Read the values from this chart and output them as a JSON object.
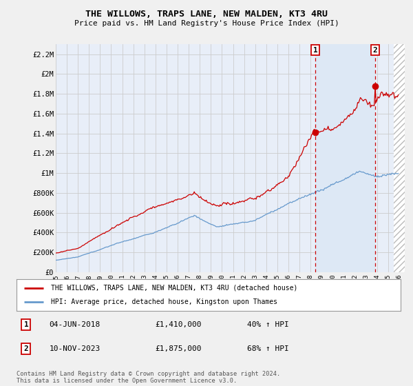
{
  "title": "THE WILLOWS, TRAPS LANE, NEW MALDEN, KT3 4RU",
  "subtitle": "Price paid vs. HM Land Registry's House Price Index (HPI)",
  "legend_label_red": "THE WILLOWS, TRAPS LANE, NEW MALDEN, KT3 4RU (detached house)",
  "legend_label_blue": "HPI: Average price, detached house, Kingston upon Thames",
  "annotation1_date": "04-JUN-2018",
  "annotation1_price": "£1,410,000",
  "annotation1_hpi": "40% ↑ HPI",
  "annotation1_year": 2018.417,
  "annotation1_value": 1410000,
  "annotation2_date": "10-NOV-2023",
  "annotation2_price": "£1,875,000",
  "annotation2_hpi": "68% ↑ HPI",
  "annotation2_year": 2023.833,
  "annotation2_value": 1875000,
  "footer": "Contains HM Land Registry data © Crown copyright and database right 2024.\nThis data is licensed under the Open Government Licence v3.0.",
  "ylim": [
    0,
    2300000
  ],
  "yticks": [
    0,
    200000,
    400000,
    600000,
    800000,
    1000000,
    1200000,
    1400000,
    1600000,
    1800000,
    2000000,
    2200000
  ],
  "ytick_labels": [
    "£0",
    "£200K",
    "£400K",
    "£600K",
    "£800K",
    "£1M",
    "£1.2M",
    "£1.4M",
    "£1.6M",
    "£1.8M",
    "£2M",
    "£2.2M"
  ],
  "xlim_start": 1995.0,
  "xlim_end": 2026.5,
  "red_color": "#cc0000",
  "blue_color": "#6699cc",
  "shade_color": "#dde8f5",
  "grid_color": "#cccccc",
  "background_plot": "#e8eef8",
  "background_fig": "#f0f0f0"
}
